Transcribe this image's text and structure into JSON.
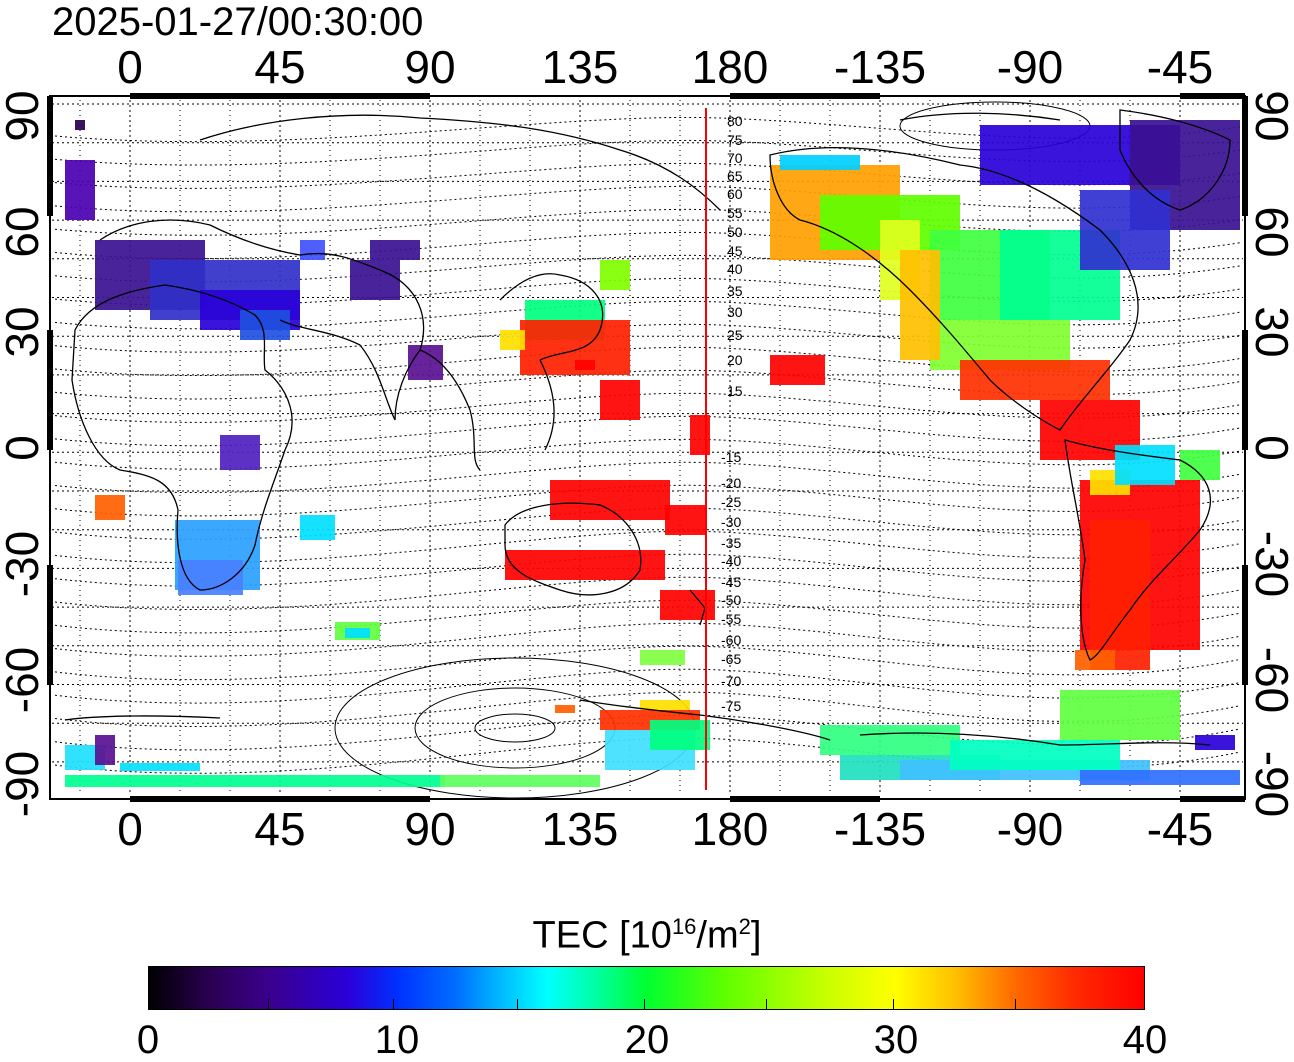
{
  "title": "2025-01-27/00:30:00",
  "map": {
    "lon_ticks": [
      "0",
      "45",
      "90",
      "135",
      "180",
      "-135",
      "-90",
      "-45"
    ],
    "lat_ticks": [
      "90",
      "60",
      "30",
      "0",
      "-30",
      "-60",
      "-90"
    ],
    "magnetic_lat_labels": [
      "80",
      "75",
      "70",
      "65",
      "60",
      "55",
      "50",
      "45",
      "40",
      "35",
      "30",
      "25",
      "20",
      "15",
      "-15",
      "-20",
      "-25",
      "-30",
      "-35",
      "-40",
      "-45",
      "-50",
      "-55",
      "-60",
      "-65",
      "-70",
      "-75"
    ],
    "meridian_line_color": "#ff0000"
  },
  "colorbar": {
    "title": "TEC  [10",
    "title_exp": "16",
    "title_unit": "/m",
    "title_unit_exp": "2",
    "title_close": "]",
    "labels": [
      "0",
      "10",
      "20",
      "30",
      "40"
    ],
    "min": 0,
    "max": 40
  }
}
